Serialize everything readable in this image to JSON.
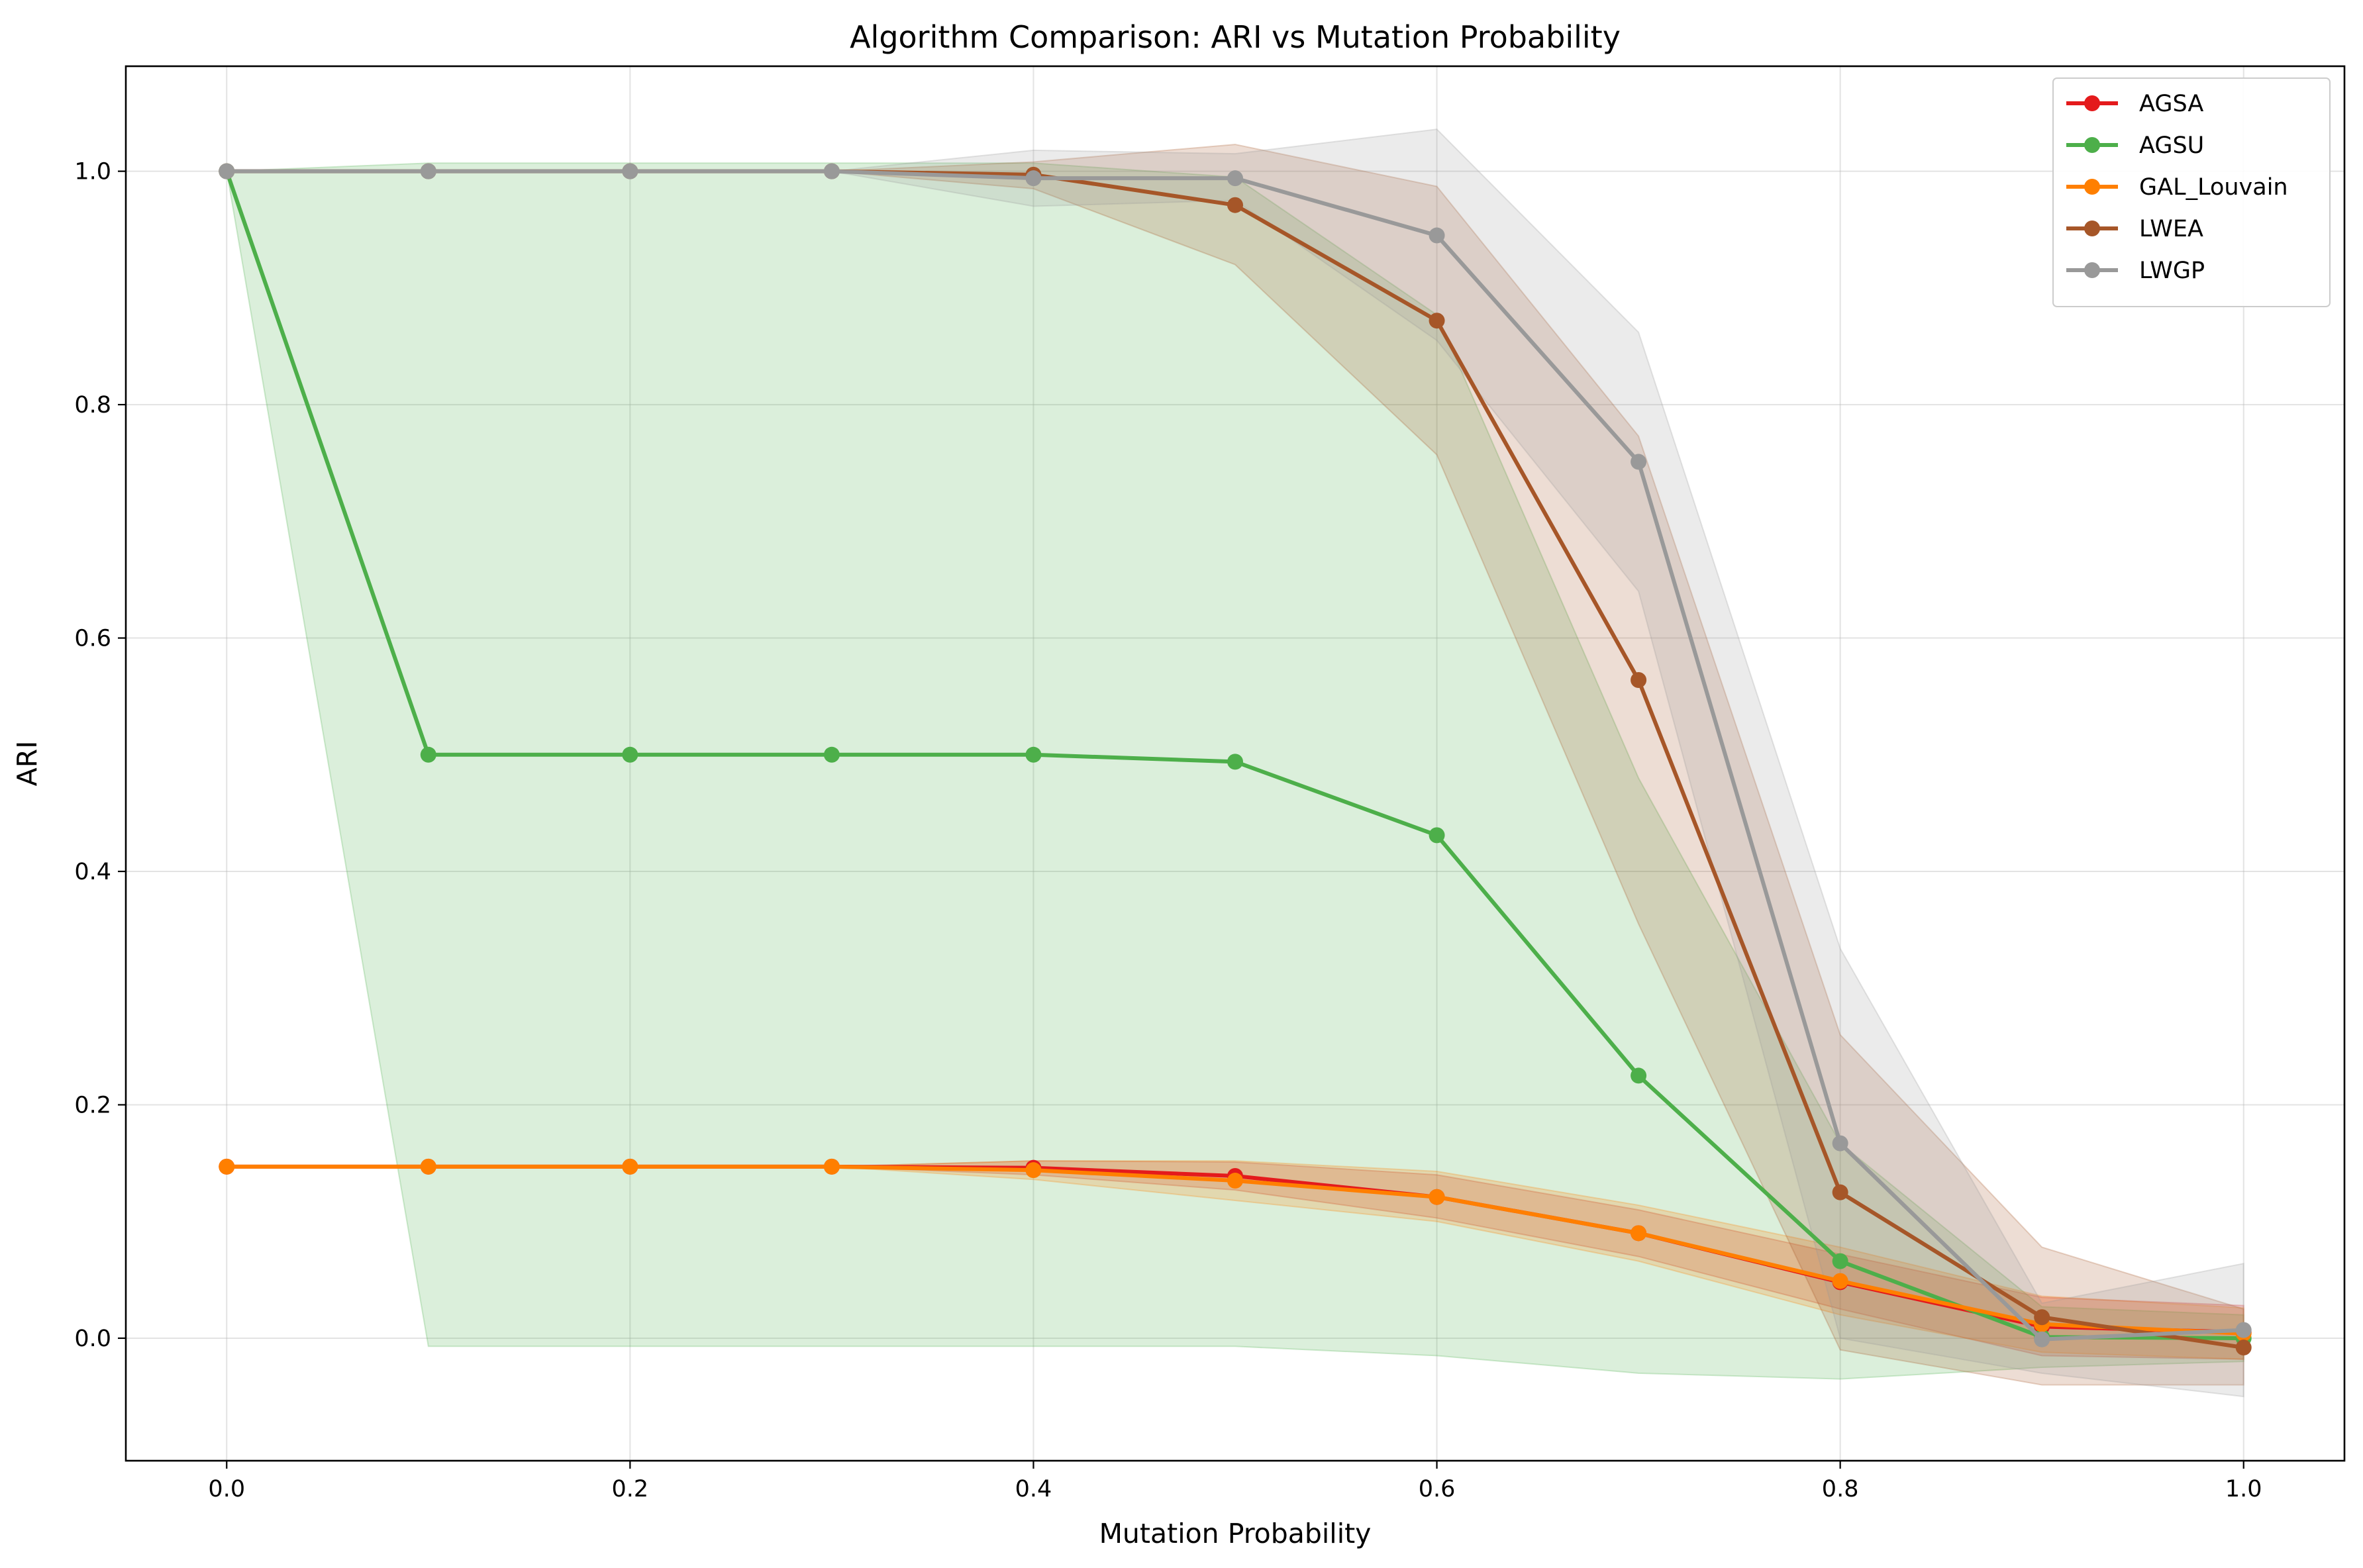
{
  "chart_data": {
    "type": "line",
    "title": "Algorithm Comparison: ARI vs Mutation Probability",
    "xlabel": "Mutation Probability",
    "ylabel": "ARI",
    "xlim": [
      -0.05,
      1.05
    ],
    "ylim": [
      -0.105,
      1.09
    ],
    "x_ticks": [
      0.0,
      0.2,
      0.4,
      0.6,
      0.8,
      1.0
    ],
    "x_tick_labels": [
      "0.0",
      "0.2",
      "0.4",
      "0.6",
      "0.8",
      "1.0"
    ],
    "y_ticks": [
      0.0,
      0.2,
      0.4,
      0.6,
      0.8,
      1.0
    ],
    "y_tick_labels": [
      "0.0",
      "0.2",
      "0.4",
      "0.6",
      "0.8",
      "1.0"
    ],
    "grid": true,
    "legend_position": "top-right",
    "x": [
      0.0,
      0.1,
      0.2,
      0.3,
      0.4,
      0.5,
      0.6,
      0.7,
      0.8,
      0.9,
      1.0
    ],
    "series": [
      {
        "name": "AGSA",
        "color": "#e41a1c",
        "values": [
          0.147,
          0.147,
          0.147,
          0.147,
          0.146,
          0.139,
          0.121,
          0.09,
          0.048,
          0.01,
          0.005
        ],
        "lower": [
          0.147,
          0.147,
          0.147,
          0.147,
          0.14,
          0.127,
          0.103,
          0.07,
          0.025,
          -0.015,
          -0.018
        ],
        "upper": [
          0.147,
          0.147,
          0.147,
          0.147,
          0.152,
          0.151,
          0.14,
          0.11,
          0.072,
          0.035,
          0.028
        ]
      },
      {
        "name": "AGSU",
        "color": "#4daf4a",
        "values": [
          1.0,
          0.5,
          0.5,
          0.5,
          0.5,
          0.494,
          0.431,
          0.225,
          0.066,
          0.001,
          0.0
        ],
        "lower": [
          1.0,
          -0.007,
          -0.007,
          -0.007,
          -0.007,
          -0.007,
          -0.015,
          -0.03,
          -0.035,
          -0.025,
          -0.02
        ],
        "upper": [
          1.0,
          1.007,
          1.007,
          1.007,
          1.007,
          0.995,
          0.877,
          0.48,
          0.167,
          0.027,
          0.02
        ]
      },
      {
        "name": "GAL_Louvain",
        "color": "#ff7f00",
        "values": [
          0.147,
          0.147,
          0.147,
          0.147,
          0.144,
          0.135,
          0.121,
          0.09,
          0.049,
          0.012,
          0.004
        ],
        "lower": [
          0.147,
          0.147,
          0.147,
          0.147,
          0.136,
          0.118,
          0.1,
          0.066,
          0.02,
          -0.012,
          -0.018
        ],
        "upper": [
          0.147,
          0.147,
          0.147,
          0.147,
          0.152,
          0.152,
          0.143,
          0.114,
          0.078,
          0.036,
          0.026
        ]
      },
      {
        "name": "LWEA",
        "color": "#a65628",
        "values": [
          1.0,
          1.0,
          1.0,
          1.0,
          0.997,
          0.971,
          0.872,
          0.564,
          0.125,
          0.018,
          -0.008
        ],
        "lower": [
          1.0,
          1.0,
          1.0,
          1.0,
          0.985,
          0.92,
          0.757,
          0.355,
          -0.01,
          -0.04,
          -0.04
        ],
        "upper": [
          1.0,
          1.0,
          1.0,
          1.0,
          1.008,
          1.023,
          0.987,
          0.773,
          0.26,
          0.078,
          0.025
        ]
      },
      {
        "name": "LWGP",
        "color": "#999999",
        "values": [
          1.0,
          1.0,
          1.0,
          1.0,
          0.994,
          0.994,
          0.945,
          0.751,
          0.167,
          -0.001,
          0.007
        ],
        "lower": [
          1.0,
          1.0,
          1.0,
          1.0,
          0.97,
          0.975,
          0.855,
          0.64,
          0.0,
          -0.03,
          -0.05
        ],
        "upper": [
          1.0,
          1.0,
          1.0,
          1.0,
          1.018,
          1.015,
          1.036,
          0.862,
          0.334,
          0.03,
          0.064
        ]
      }
    ]
  }
}
